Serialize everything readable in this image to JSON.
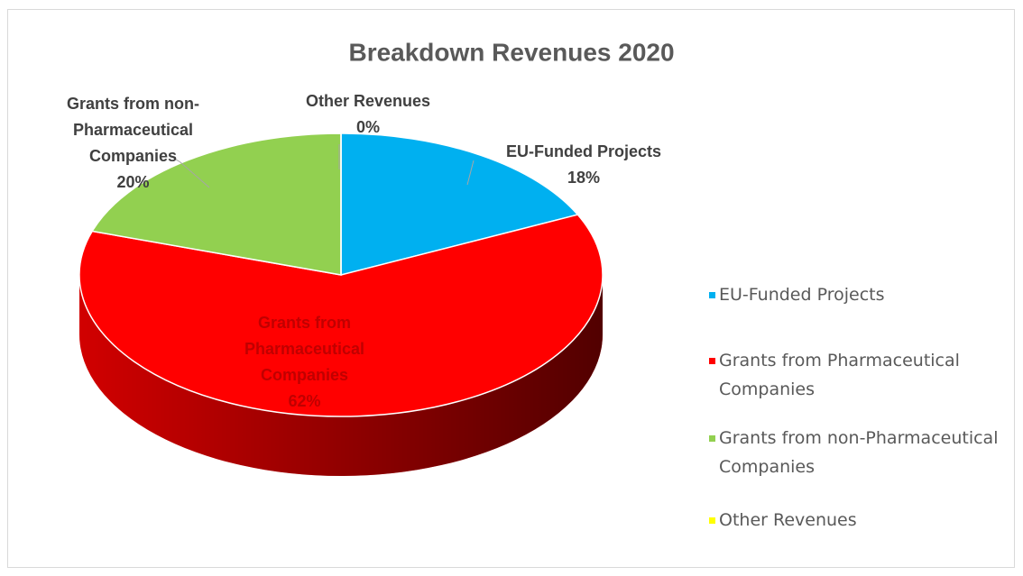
{
  "chart_data": {
    "type": "pie3d",
    "title": "Breakdown Revenues 2020",
    "categories": [
      "EU-Funded Projects",
      "Grants from Pharmaceutical Companies",
      "Grants from non-Pharmaceutical Companies",
      "Other Revenues"
    ],
    "values": [
      18,
      62,
      20,
      0
    ],
    "value_labels": [
      "18%",
      "62%",
      "20%",
      "0%"
    ],
    "colors": [
      "#00b0f0",
      "#ff0000",
      "#92d050",
      "#ffff00"
    ],
    "legend": "right"
  }
}
